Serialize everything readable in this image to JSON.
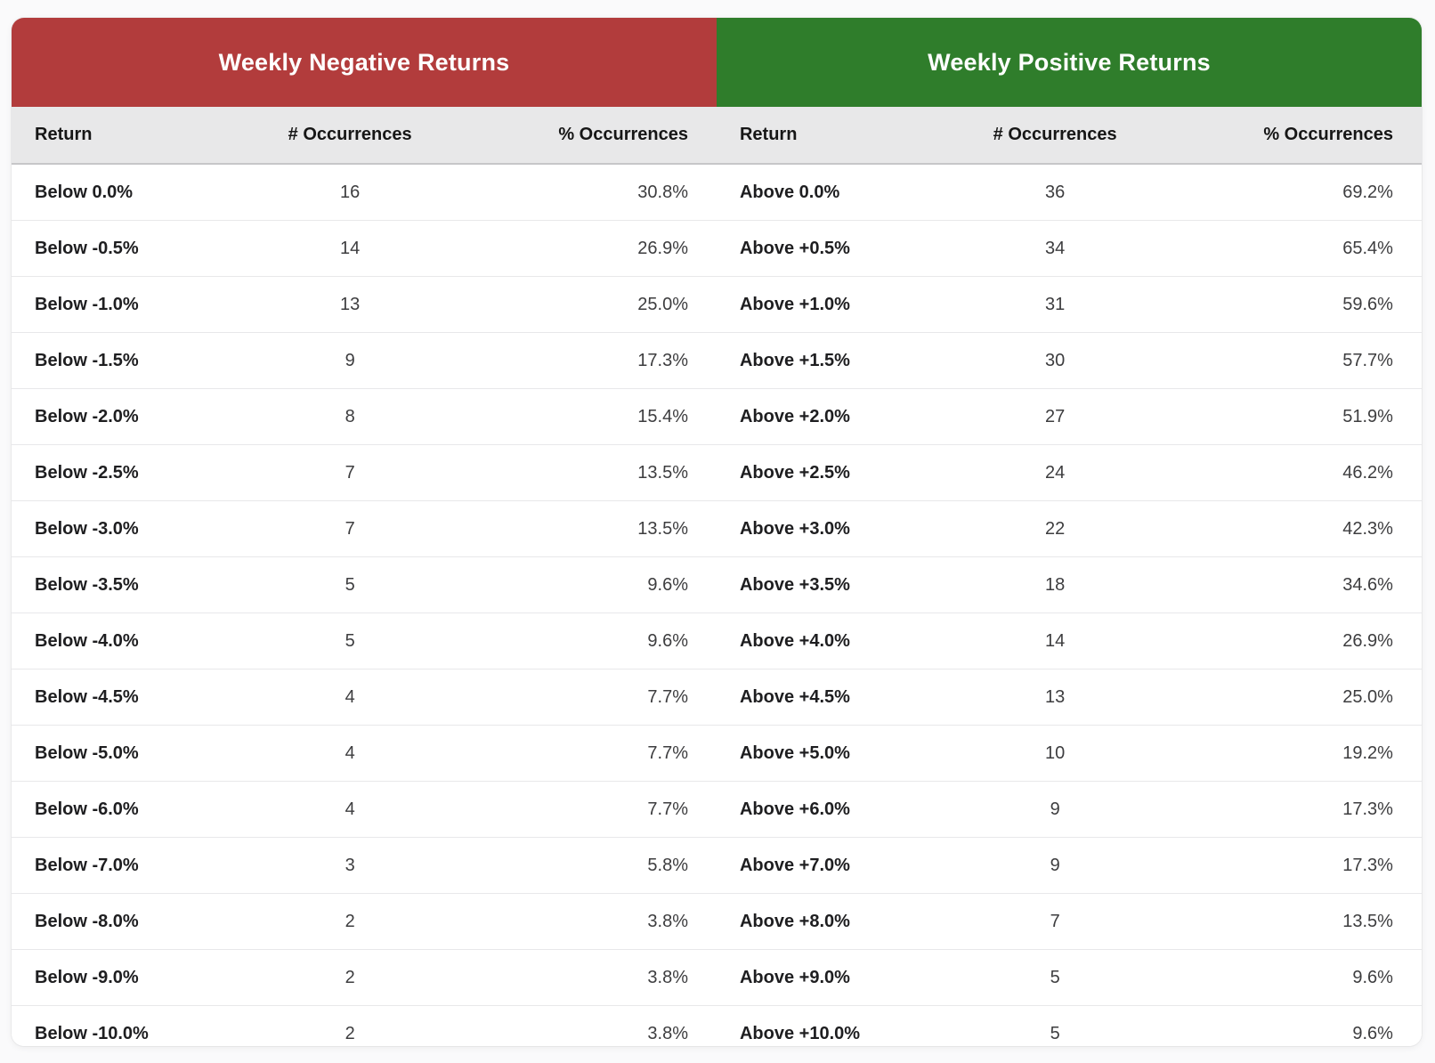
{
  "chart_data": [
    {
      "type": "table",
      "title": "Weekly Negative Returns",
      "header_color": "#b23c3c",
      "columns": [
        "Return",
        "# Occurrences",
        "% Occurrences"
      ],
      "rows": [
        [
          "Below 0.0%",
          "16",
          "30.8%"
        ],
        [
          "Below -0.5%",
          "14",
          "26.9%"
        ],
        [
          "Below -1.0%",
          "13",
          "25.0%"
        ],
        [
          "Below -1.5%",
          "9",
          "17.3%"
        ],
        [
          "Below -2.0%",
          "8",
          "15.4%"
        ],
        [
          "Below -2.5%",
          "7",
          "13.5%"
        ],
        [
          "Below -3.0%",
          "7",
          "13.5%"
        ],
        [
          "Below -3.5%",
          "5",
          "9.6%"
        ],
        [
          "Below -4.0%",
          "5",
          "9.6%"
        ],
        [
          "Below -4.5%",
          "4",
          "7.7%"
        ],
        [
          "Below -5.0%",
          "4",
          "7.7%"
        ],
        [
          "Below -6.0%",
          "4",
          "7.7%"
        ],
        [
          "Below -7.0%",
          "3",
          "5.8%"
        ],
        [
          "Below -8.0%",
          "2",
          "3.8%"
        ],
        [
          "Below -9.0%",
          "2",
          "3.8%"
        ],
        [
          "Below -10.0%",
          "2",
          "3.8%"
        ]
      ]
    },
    {
      "type": "table",
      "title": "Weekly Positive Returns",
      "header_color": "#2f7d2b",
      "columns": [
        "Return",
        "# Occurrences",
        "% Occurrences"
      ],
      "rows": [
        [
          "Above 0.0%",
          "36",
          "69.2%"
        ],
        [
          "Above +0.5%",
          "34",
          "65.4%"
        ],
        [
          "Above +1.0%",
          "31",
          "59.6%"
        ],
        [
          "Above +1.5%",
          "30",
          "57.7%"
        ],
        [
          "Above +2.0%",
          "27",
          "51.9%"
        ],
        [
          "Above +2.5%",
          "24",
          "46.2%"
        ],
        [
          "Above +3.0%",
          "22",
          "42.3%"
        ],
        [
          "Above +3.5%",
          "18",
          "34.6%"
        ],
        [
          "Above +4.0%",
          "14",
          "26.9%"
        ],
        [
          "Above +4.5%",
          "13",
          "25.0%"
        ],
        [
          "Above +5.0%",
          "10",
          "19.2%"
        ],
        [
          "Above +6.0%",
          "9",
          "17.3%"
        ],
        [
          "Above +7.0%",
          "9",
          "17.3%"
        ],
        [
          "Above +8.0%",
          "7",
          "13.5%"
        ],
        [
          "Above +9.0%",
          "5",
          "9.6%"
        ],
        [
          "Above +10.0%",
          "5",
          "9.6%"
        ]
      ]
    }
  ]
}
